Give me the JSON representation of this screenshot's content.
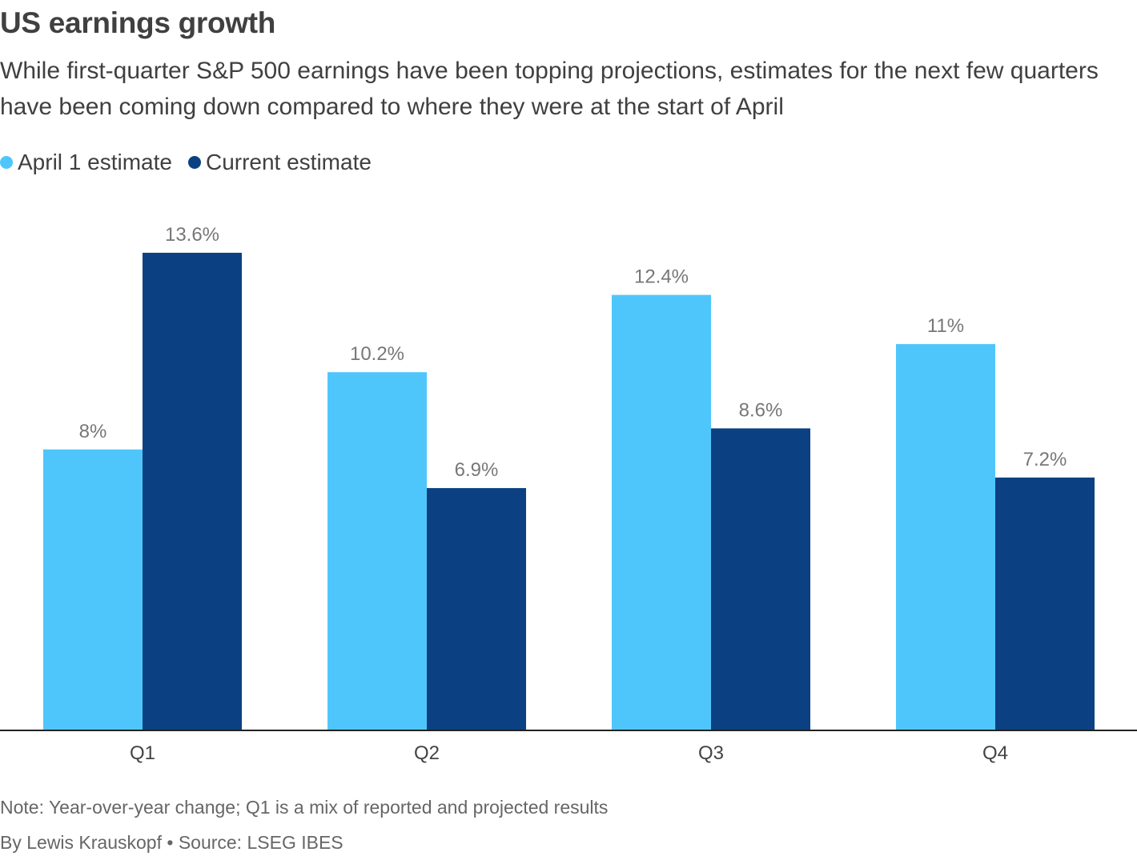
{
  "title": "US earnings growth",
  "subtitle": "While first-quarter S&P 500 earnings have been topping projections, estimates for the next few quarters have been coming down compared to where they were at the start of April",
  "legend": [
    {
      "label": "April 1 estimate",
      "color": "#4fc6fb"
    },
    {
      "label": "Current estimate",
      "color": "#0b4182"
    }
  ],
  "chart_data": {
    "type": "bar",
    "categories": [
      "Q1",
      "Q2",
      "Q3",
      "Q4"
    ],
    "series": [
      {
        "name": "April 1 estimate",
        "color": "#4fc6fb",
        "values": [
          8,
          10.2,
          12.4,
          11
        ],
        "labels": [
          "8%",
          "10.2%",
          "12.4%",
          "11%"
        ]
      },
      {
        "name": "Current estimate",
        "color": "#0b4182",
        "values": [
          13.6,
          6.9,
          8.6,
          7.2
        ],
        "labels": [
          "13.6%",
          "6.9%",
          "8.6%",
          "7.2%"
        ]
      }
    ],
    "title": "US earnings growth",
    "xlabel": "",
    "ylabel": "",
    "ylim": [
      0,
      14
    ],
    "grid": false,
    "legend_position": "top-left"
  },
  "note": "Note: Year-over-year change; Q1 is a mix of reported and projected results",
  "credit": "By Lewis Krauskopf • Source: LSEG IBES"
}
